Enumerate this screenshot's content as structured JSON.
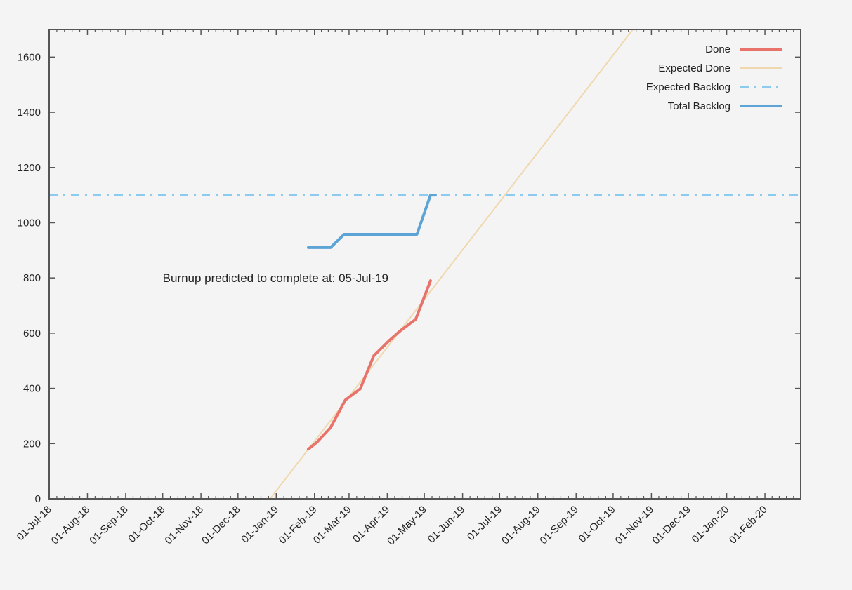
{
  "chart_data": {
    "type": "line",
    "title": "",
    "xlabel": "",
    "ylabel": "",
    "x_axis": {
      "type": "date",
      "min": "2018-07-01",
      "max": "2020-03-01",
      "tick_labels": [
        "01-Jul-18",
        "01-Aug-18",
        "01-Sep-18",
        "01-Oct-18",
        "01-Nov-18",
        "01-Dec-18",
        "01-Jan-19",
        "01-Feb-19",
        "01-Mar-19",
        "01-Apr-19",
        "01-May-19",
        "01-Jun-19",
        "01-Jul-19",
        "01-Aug-19",
        "01-Sep-19",
        "01-Oct-19",
        "01-Nov-19",
        "01-Dec-19",
        "01-Jan-20",
        "01-Feb-20"
      ],
      "tick_dates": [
        "2018-07-01",
        "2018-08-01",
        "2018-09-01",
        "2018-10-01",
        "2018-11-01",
        "2018-12-01",
        "2019-01-01",
        "2019-02-01",
        "2019-03-01",
        "2019-04-01",
        "2019-05-01",
        "2019-06-01",
        "2019-07-01",
        "2019-08-01",
        "2019-09-01",
        "2019-10-01",
        "2019-11-01",
        "2019-12-01",
        "2020-01-01",
        "2020-02-01"
      ]
    },
    "y_axis": {
      "min": 0,
      "max": 1700,
      "ticks": [
        0,
        200,
        400,
        600,
        800,
        1000,
        1200,
        1400,
        1600
      ]
    },
    "grid": false,
    "legend_position": "top-right",
    "series": [
      {
        "name": "Done",
        "color": "#e8736a",
        "style": "solid",
        "points": [
          {
            "x": "2019-01-27",
            "y": 180
          },
          {
            "x": "2019-02-03",
            "y": 205
          },
          {
            "x": "2019-02-14",
            "y": 258
          },
          {
            "x": "2019-02-26",
            "y": 358
          },
          {
            "x": "2019-03-10",
            "y": 398
          },
          {
            "x": "2019-03-21",
            "y": 518
          },
          {
            "x": "2019-04-03",
            "y": 575
          },
          {
            "x": "2019-04-12",
            "y": 610
          },
          {
            "x": "2019-04-24",
            "y": 650
          },
          {
            "x": "2019-05-06",
            "y": 790
          }
        ]
      },
      {
        "name": "Expected Done",
        "color": "#f0d8ae",
        "style": "solid",
        "points": [
          {
            "x": "2018-12-27",
            "y": 0
          },
          {
            "x": "2019-10-17",
            "y": 1700
          }
        ]
      },
      {
        "name": "Expected Backlog",
        "color": "#8ccbef",
        "style": "dash-dot",
        "points": [
          {
            "x": "2018-07-01",
            "y": 1100
          },
          {
            "x": "2020-03-01",
            "y": 1100
          }
        ]
      },
      {
        "name": "Total Backlog",
        "color": "#5ca3d6",
        "style": "solid",
        "points": [
          {
            "x": "2019-01-27",
            "y": 910
          },
          {
            "x": "2019-02-14",
            "y": 910
          },
          {
            "x": "2019-02-25",
            "y": 958
          },
          {
            "x": "2019-04-25",
            "y": 958
          },
          {
            "x": "2019-05-06",
            "y": 1100
          },
          {
            "x": "2019-05-10",
            "y": 1100
          }
        ]
      }
    ],
    "annotations": [
      {
        "text": "Burnup predicted to complete at: 05-Jul-19",
        "x": "2018-10-01",
        "y": 800
      }
    ]
  }
}
